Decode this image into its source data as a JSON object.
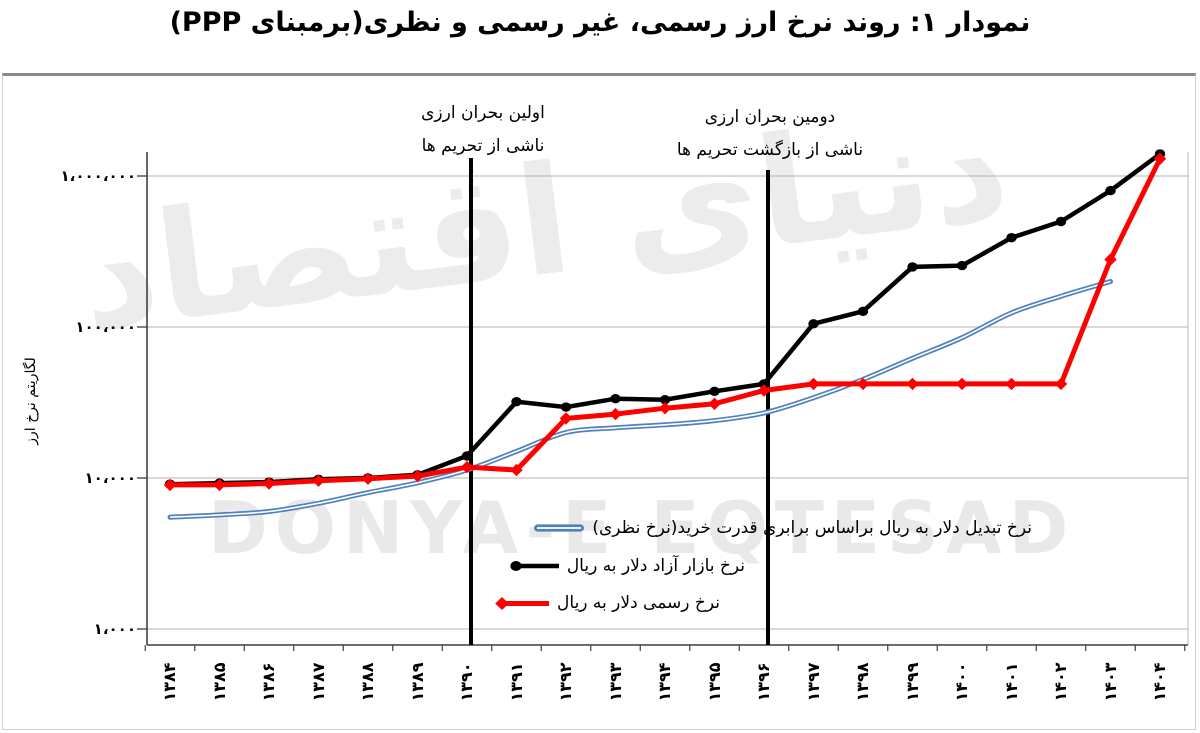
{
  "title": "نمودار ۱: روند نرخ ارز رسمی، غیر رسمی و نظری(برمبنای PPP)",
  "watermark": {
    "latin": "DONYA-E EQTESAD",
    "persian": "دنیای اقتصاد"
  },
  "y_axis": {
    "title": "لگاریتم نرخ ارز",
    "scale": "log",
    "tick_labels": [
      "۱،۰۰۰،۰۰۰",
      "۱۰۰،۰۰۰",
      "۱۰،۰۰۰",
      "۱،۰۰۰"
    ]
  },
  "x_axis": {
    "tick_labels": [
      "۱۳۸۴",
      "۱۳۸۵",
      "۱۳۸۶",
      "۱۳۸۷",
      "۱۳۸۸",
      "۱۳۸۹",
      "۱۳۹۰",
      "۱۳۹۱",
      "۱۳۹۲",
      "۱۳۹۳",
      "۱۳۹۴",
      "۱۳۹۵",
      "۱۳۹۶",
      "۱۳۹۷",
      "۱۳۹۸",
      "۱۳۹۹",
      "۱۴۰۰",
      "۱۴۰۱",
      "۱۴۰۲",
      "۱۴۰۳",
      "۱۴۰۴"
    ]
  },
  "annotations": [
    {
      "line1": "اولین بحران ارزی",
      "line2": "ناشی از تحریم ها",
      "year": "۱۳۹۰"
    },
    {
      "line1": "دومین بحران ارزی",
      "line2": "ناشی از بازگشت تحریم ها",
      "year": "۱۳۹۶"
    }
  ],
  "chart_data": {
    "type": "line",
    "title": "نمودار ۱: روند نرخ ارز رسمی، غیر رسمی و نظری(برمبنای PPP)",
    "xlabel": "",
    "ylabel": "لگاریتم نرخ ارز",
    "y_scale": "log",
    "ylim": [
      1000,
      1400000
    ],
    "y_ticks": [
      1000000,
      100000,
      10000,
      1000
    ],
    "grid": "horizontal",
    "legend_position": "inside-bottom",
    "categories": [
      "۱۳۸۴",
      "۱۳۸۵",
      "۱۳۸۶",
      "۱۳۸۷",
      "۱۳۸۸",
      "۱۳۸۹",
      "۱۳۹۰",
      "۱۳۹۱",
      "۱۳۹۲",
      "۱۳۹۳",
      "۱۳۹۴",
      "۱۳۹۵",
      "۱۳۹۶",
      "۱۳۹۷",
      "۱۳۹۸",
      "۱۳۹۹",
      "۱۴۰۰",
      "۱۴۰۱",
      "۱۴۰۲",
      "۱۴۰۳",
      "۱۴۰۴"
    ],
    "categories_western": [
      1384,
      1385,
      1386,
      1387,
      1388,
      1389,
      1390,
      1391,
      1392,
      1393,
      1394,
      1395,
      1396,
      1397,
      1398,
      1399,
      1400,
      1401,
      1402,
      1403,
      1404
    ],
    "series": [
      {
        "name": "نرخ تبدیل دلار به ریال براساس برابری قدرت خرید(نرخ نظری)",
        "color": "#4f81bd",
        "style": "double-line",
        "marker": "none",
        "values": [
          5500,
          5700,
          6000,
          6800,
          8000,
          9300,
          11300,
          15000,
          20000,
          21500,
          22500,
          24000,
          27000,
          34000,
          45000,
          62000,
          85000,
          124000,
          160000,
          200000,
          null
        ]
      },
      {
        "name": "نرخ بازار آزاد  دلار به ریال",
        "color": "#000000",
        "style": "solid",
        "marker": "circle",
        "values": [
          9100,
          9250,
          9400,
          9800,
          10000,
          10500,
          14000,
          32000,
          29500,
          33500,
          33000,
          37500,
          42000,
          105000,
          127000,
          250000,
          255000,
          390000,
          500000,
          800000,
          1400000
        ]
      },
      {
        "name": "نرخ رسمی دلار به ریال",
        "color": "#ff0000",
        "style": "solid",
        "marker": "diamond",
        "values": [
          9000,
          9000,
          9200,
          9600,
          9900,
          10300,
          11800,
          11300,
          24800,
          26500,
          29000,
          31000,
          38000,
          42000,
          42000,
          42000,
          42000,
          42000,
          42000,
          280000,
          1300000
        ]
      }
    ],
    "vertical_lines": [
      {
        "year_index": 6,
        "label": [
          "اولین بحران ارزی",
          "ناشی از تحریم ها"
        ]
      },
      {
        "year_index": 12,
        "label": [
          "دومین بحران ارزی",
          "ناشی از بازگشت تحریم ها"
        ]
      }
    ]
  }
}
